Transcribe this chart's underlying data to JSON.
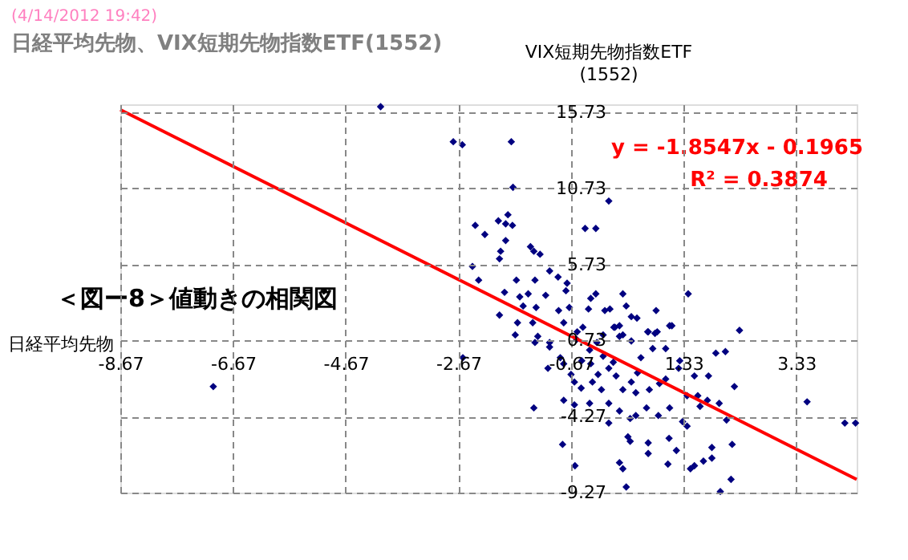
{
  "chart_data": {
    "type": "scatter",
    "title": "日経平均先物、VIX短期先物指数ETF(1552)",
    "subtitle": "(4/14/2012 19:42)",
    "xlabel": "日経平均先物",
    "ylabel": "VIX短期先物指数ETF\n(1552)",
    "annotations": [
      "＜図ー8＞値動きの相関図",
      "y = -1.8547x - 0.1965",
      "R² = 0.3874"
    ],
    "xlim": [
      -8.67,
      4.4
    ],
    "ylim": [
      -9.27,
      16.26
    ],
    "xticks": [
      -8.67,
      -6.67,
      -4.67,
      -2.67,
      -0.67,
      1.33,
      3.33
    ],
    "yticks": [
      -9.27,
      -4.27,
      0.73,
      5.73,
      10.73,
      15.73
    ],
    "grid": true,
    "marker": "diamond",
    "line_style": "solid",
    "series": [
      {
        "color": "#000080",
        "x": [
          -4.05,
          -2.76,
          -2.6,
          -2.37,
          -2.2,
          -2.42,
          -2.31,
          -7.02,
          -2.59,
          -1.73,
          -1.7,
          0.0,
          -1.96,
          -1.79,
          -1.83,
          -1.71,
          -1.83,
          -1.92,
          -1.94,
          -1.39,
          -1.33,
          -1.22,
          -0.42,
          -0.23,
          -1.05,
          -0.9,
          -1.64,
          -1.31,
          -0.74,
          -0.76,
          -1.85,
          -1.58,
          -1.43,
          -1.12,
          -0.23,
          -0.32,
          0.25,
          1.41,
          -1.94,
          -1.52,
          -1.29,
          -0.89,
          -0.7,
          -0.36,
          -0.07,
          0.02,
          0.31,
          0.4,
          0.5,
          0.84,
          1.12,
          2.32,
          -1.62,
          -1.35,
          -1.66,
          -1.26,
          -1.05,
          -0.8,
          -0.56,
          -0.46,
          0.09,
          0.19,
          -0.1,
          0.25,
          0.4,
          0.7,
          0.82,
          -1.31,
          -1.05,
          -0.86,
          -0.57,
          -0.34,
          -0.32,
          0.11,
          0.19,
          0.69,
          0.86,
          1.08,
          0.57,
          0.78,
          1.01,
          1.26,
          1.24,
          1.52,
          1.77,
          1.9,
          2.07,
          1.39,
          1.58,
          1.75,
          1.96,
          1.62,
          2.09,
          2.23,
          3.52,
          4.19,
          4.38,
          -1.33,
          -0.8,
          -0.61,
          -0.34,
          0.0,
          0.0,
          0.19,
          0.38,
          0.48,
          0.67,
          0.88,
          1.08,
          1.31,
          1.39,
          0.34,
          0.38,
          0.7,
          0.7,
          1.07,
          1.2,
          -0.82,
          -0.6,
          0.19,
          0.25,
          0.31,
          1.05,
          1.45,
          1.52,
          1.68,
          1.83,
          1.83,
          2.19,
          2.17,
          1.98,
          -0.29,
          -0.19,
          -0.13,
          -0.49,
          0.0,
          0.13,
          0.25,
          0.4,
          0.48,
          0.72,
          0.9,
          1.01,
          0.51,
          -0.67,
          -0.61,
          -1.08,
          -0.8,
          -0.48,
          -0.1,
          -0.21,
          0.08
        ],
        "values": [
          16.1,
          13.8,
          13.6,
          8.3,
          7.7,
          5.6,
          4.7,
          -2.3,
          -0.4,
          13.8,
          10.8,
          9.9,
          8.6,
          9.0,
          8.4,
          8.3,
          7.3,
          6.6,
          6.1,
          6.9,
          6.6,
          6.4,
          8.1,
          8.1,
          5.3,
          4.9,
          4.7,
          4.7,
          4.5,
          4.0,
          3.9,
          3.6,
          3.8,
          3.7,
          3.8,
          3.5,
          3.8,
          3.8,
          2.4,
          3.0,
          2.9,
          2.7,
          2.9,
          2.8,
          2.7,
          2.8,
          3.0,
          2.3,
          2.2,
          2.7,
          1.7,
          1.4,
          1.9,
          1.9,
          1.1,
          1.0,
          0.6,
          1.9,
          1.3,
          1.6,
          1.6,
          1.7,
          1.1,
          1.1,
          0.7,
          1.3,
          1.2,
          0.6,
          0.3,
          -0.4,
          0.8,
          0.1,
          -0.8,
          1.6,
          1.0,
          1.3,
          1.3,
          1.7,
          -0.4,
          0.2,
          0.2,
          -0.6,
          -1.1,
          -1.6,
          -1.6,
          -0.1,
          0.0,
          -2.9,
          -2.9,
          -3.2,
          -3.4,
          -3.6,
          -4.5,
          -2.3,
          -3.3,
          -4.7,
          -4.7,
          -3.7,
          -3.2,
          -3.5,
          -3.4,
          -3.4,
          -4.7,
          -3.9,
          -4.4,
          -4.2,
          -3.7,
          -4.2,
          -3.7,
          -4.6,
          -4.9,
          -5.6,
          -5.9,
          -6.0,
          -6.7,
          -5.7,
          -6.5,
          -6.1,
          -7.5,
          -7.3,
          -7.7,
          -8.9,
          -7.4,
          -7.7,
          -7.5,
          -7.2,
          -7.0,
          -6.3,
          -6.1,
          -8.4,
          -9.2,
          -2.0,
          -1.5,
          -2.5,
          -2.4,
          -1.1,
          -1.6,
          -2.5,
          -2.0,
          -2.7,
          -2.5,
          -2.1,
          -1.8,
          -1.4,
          -1.5,
          -2.0,
          -1.1,
          -0.8,
          -0.6,
          -0.3,
          0.6,
          -0.7
        ]
      },
      {
        "type": "line",
        "color": "#ff0000",
        "marker": "none",
        "x": [
          -8.67,
          4.4
        ],
        "values": [
          15.9,
          -8.4
        ]
      }
    ]
  }
}
